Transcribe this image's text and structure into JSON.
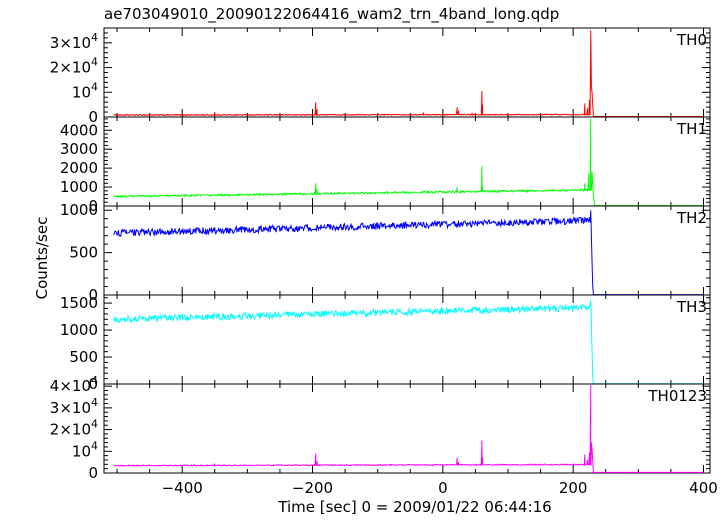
{
  "title": "ae703049010_20090122064416_wam2_trn_4band_long.qdp",
  "xlabel": "Time [sec] 0 = 2009/01/22 06:44:16",
  "ylabel": "Counts/sec",
  "chart_data": {
    "type": "line",
    "title": "ae703049010_20090122064416_wam2_trn_4band_long.qdp",
    "xlabel": "Time [sec] 0 = 2009/01/22 06:44:16",
    "ylabel": "Counts/sec",
    "xlim": [
      -520,
      410
    ],
    "x_ticks": [
      -400,
      -200,
      0,
      200,
      400
    ],
    "x_tick_labels": [
      "−400",
      "−200",
      "0",
      "200",
      "400"
    ],
    "grid": false,
    "series": [
      {
        "name": "TH0",
        "color": "#ff0000",
        "ylim": [
          0,
          36000
        ],
        "y_ticks": [
          0,
          10000,
          20000,
          30000
        ],
        "y_tick_labels": [
          "0",
          "10^4",
          "2×10^4",
          "3×10^4"
        ],
        "x_range": [
          -505,
          400
        ],
        "gap_after_x": 230,
        "baseline": {
          "type": "linear",
          "start": 800,
          "end": 1000
        },
        "noise": 200,
        "spikes": [
          {
            "x": -350,
            "y": 2000
          },
          {
            "x": -195,
            "y": 6000
          },
          {
            "x": -193,
            "y": 3200
          },
          {
            "x": -30,
            "y": 1800
          },
          {
            "x": 22,
            "y": 4000
          },
          {
            "x": 24,
            "y": 2600
          },
          {
            "x": 45,
            "y": 1700
          },
          {
            "x": 60,
            "y": 10500
          },
          {
            "x": 61,
            "y": 5000
          },
          {
            "x": 218,
            "y": 5500
          },
          {
            "x": 222,
            "y": 3500
          },
          {
            "x": 225,
            "y": 7000
          },
          {
            "x": 227,
            "y": 35000
          },
          {
            "x": 228,
            "y": 12000
          },
          {
            "x": 229,
            "y": 10000
          }
        ],
        "tail": [
          {
            "x": 231,
            "y": 200
          },
          {
            "x": 400,
            "y": 200
          }
        ]
      },
      {
        "name": "TH1",
        "color": "#00ff00",
        "ylim": [
          0,
          4700
        ],
        "y_ticks": [
          0,
          1000,
          2000,
          3000,
          4000
        ],
        "y_tick_labels": [
          "0",
          "1000",
          "2000",
          "3000",
          "4000"
        ],
        "x_range": [
          -505,
          400
        ],
        "gap_after_x": 232,
        "baseline": {
          "type": "linear",
          "start": 500,
          "end": 850
        },
        "noise": 50,
        "spikes": [
          {
            "x": -195,
            "y": 1200
          },
          {
            "x": -193,
            "y": 900
          },
          {
            "x": 22,
            "y": 1000
          },
          {
            "x": 60,
            "y": 2100
          },
          {
            "x": 61,
            "y": 1000
          },
          {
            "x": 218,
            "y": 1200
          },
          {
            "x": 224,
            "y": 1700
          },
          {
            "x": 227,
            "y": 4600
          },
          {
            "x": 229,
            "y": 1800
          },
          {
            "x": 231,
            "y": 600
          }
        ],
        "tail": [
          {
            "x": 233,
            "y": 20
          },
          {
            "x": 400,
            "y": 20
          }
        ]
      },
      {
        "name": "TH2",
        "color": "#0000ff",
        "ylim": [
          0,
          1050
        ],
        "y_ticks": [
          0,
          500,
          1000
        ],
        "y_tick_labels": [
          "0",
          "500",
          "1000"
        ],
        "x_range": [
          -505,
          226
        ],
        "gap_after_x": 231,
        "baseline": {
          "type": "linear",
          "start": 730,
          "end": 880
        },
        "noise": 40,
        "spikes": [
          {
            "x": 227,
            "y": 1000
          },
          {
            "x": 229,
            "y": 380
          },
          {
            "x": 230,
            "y": 120
          }
        ],
        "tail": [
          {
            "x": 231,
            "y": 5
          },
          {
            "x": 400,
            "y": 5
          }
        ]
      },
      {
        "name": "TH3",
        "color": "#00ffff",
        "ylim": [
          0,
          1650
        ],
        "y_ticks": [
          0,
          500,
          1000,
          1500
        ],
        "y_tick_labels": [
          "0",
          "500",
          "1000",
          "1500"
        ],
        "x_range": [
          -505,
          226
        ],
        "gap_after_x": 231,
        "baseline": {
          "type": "linear",
          "start": 1200,
          "end": 1420
        },
        "noise": 60,
        "spikes": [
          {
            "x": 227,
            "y": 1550
          },
          {
            "x": 229,
            "y": 600
          },
          {
            "x": 230,
            "y": 150
          }
        ],
        "tail": [
          {
            "x": 231,
            "y": 5
          },
          {
            "x": 400,
            "y": 5
          }
        ]
      },
      {
        "name": "TH0123",
        "color": "#ff00ff",
        "ylim": [
          0,
          41000
        ],
        "y_ticks": [
          0,
          10000,
          20000,
          30000,
          40000
        ],
        "y_tick_labels": [
          "0",
          "10^4",
          "2×10^4",
          "3×10^4",
          "4×10^4"
        ],
        "x_range": [
          -505,
          400
        ],
        "gap_after_x": 231,
        "baseline": {
          "type": "linear",
          "start": 3400,
          "end": 3900
        },
        "noise": 250,
        "spikes": [
          {
            "x": -350,
            "y": 4300
          },
          {
            "x": -195,
            "y": 9000
          },
          {
            "x": -193,
            "y": 5500
          },
          {
            "x": 22,
            "y": 7000
          },
          {
            "x": 24,
            "y": 5000
          },
          {
            "x": 60,
            "y": 15000
          },
          {
            "x": 61,
            "y": 7000
          },
          {
            "x": 218,
            "y": 8500
          },
          {
            "x": 222,
            "y": 6000
          },
          {
            "x": 225,
            "y": 9500
          },
          {
            "x": 227,
            "y": 40500
          },
          {
            "x": 228,
            "y": 14000
          },
          {
            "x": 229,
            "y": 11000
          }
        ],
        "tail": [
          {
            "x": 231,
            "y": 300
          },
          {
            "x": 400,
            "y": 300
          }
        ]
      }
    ]
  }
}
